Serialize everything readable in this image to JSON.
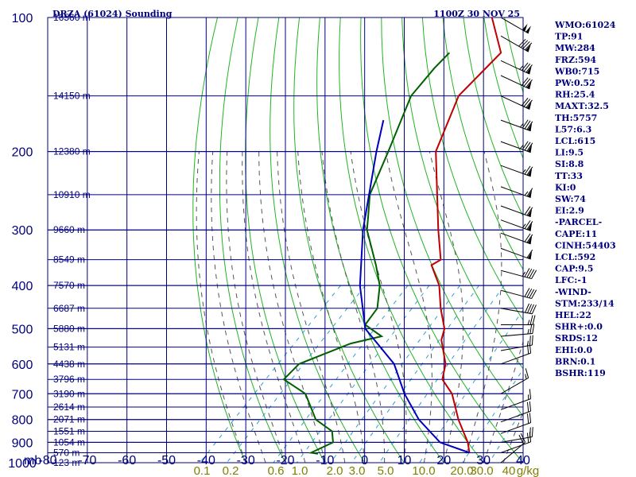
{
  "header": {
    "station": "DRZA (61024) Sounding",
    "time": "1100Z 30 NOV 25"
  },
  "chart_data": {
    "type": "skew-t",
    "pressure_axis": {
      "unit_label": "mb",
      "ticks": [
        100,
        200,
        300,
        400,
        500,
        600,
        700,
        800,
        900,
        1000
      ],
      "range": [
        100,
        1000
      ],
      "scale": "log"
    },
    "temperature_axis": {
      "ticks": [
        "-80",
        "-70",
        "-60",
        "-50",
        "-40",
        "-30",
        "-20",
        "-10",
        "0",
        "10",
        "20",
        "30",
        "40"
      ],
      "tick_values": [
        -80,
        -70,
        -60,
        -50,
        -40,
        -30,
        -20,
        -10,
        0,
        10,
        20,
        30,
        40
      ],
      "range": [
        -80,
        40
      ]
    },
    "mixing_ratio_labels": [
      "0.1",
      "0.2",
      "0.6",
      "1.0",
      "2.0",
      "3.0",
      "5.0",
      "10.0",
      "20.0",
      "30.0",
      "40",
      "g/kg"
    ],
    "height_labels": [
      {
        "text": "16560 m",
        "p": 100
      },
      {
        "text": "14150 m",
        "p": 150
      },
      {
        "text": "12380 m",
        "p": 200
      },
      {
        "text": "10910 m",
        "p": 250
      },
      {
        "text": "9660 m",
        "p": 300
      },
      {
        "text": "8549 m",
        "p": 350
      },
      {
        "text": "7570 m",
        "p": 400
      },
      {
        "text": "6687 m",
        "p": 450
      },
      {
        "text": "5880 m",
        "p": 500
      },
      {
        "text": "5131 m",
        "p": 550
      },
      {
        "text": "4438 m",
        "p": 600
      },
      {
        "text": "3796 m",
        "p": 650
      },
      {
        "text": "3190 m",
        "p": 700
      },
      {
        "text": "2614 m",
        "p": 750
      },
      {
        "text": "2071 m",
        "p": 800
      },
      {
        "text": "1551 m",
        "p": 850
      },
      {
        "text": "1054 m",
        "p": 900
      },
      {
        "text": "570 m",
        "p": 950
      },
      {
        "text": "123 m",
        "p": 1000
      }
    ],
    "series": [
      {
        "role": "temperature",
        "color": "#c00000",
        "points": [
          [
            100,
            -78
          ],
          [
            120,
            -67
          ],
          [
            128,
            -67
          ],
          [
            150,
            -67
          ],
          [
            200,
            -59
          ],
          [
            250,
            -48
          ],
          [
            300,
            -39
          ],
          [
            350,
            -31
          ],
          [
            360,
            -32
          ],
          [
            400,
            -25
          ],
          [
            450,
            -19
          ],
          [
            500,
            -13
          ],
          [
            530,
            -11
          ],
          [
            600,
            -4
          ],
          [
            650,
            -1
          ],
          [
            700,
            5
          ],
          [
            800,
            13
          ],
          [
            900,
            21
          ],
          [
            950,
            24
          ]
        ]
      },
      {
        "role": "dewpoint",
        "color": "#006000",
        "points": [
          [
            120,
            -80
          ],
          [
            130,
            -80
          ],
          [
            150,
            -79
          ],
          [
            200,
            -71
          ],
          [
            250,
            -65
          ],
          [
            280,
            -60
          ],
          [
            300,
            -57
          ],
          [
            360,
            -46
          ],
          [
            400,
            -40
          ],
          [
            450,
            -35
          ],
          [
            490,
            -34
          ],
          [
            520,
            -27
          ],
          [
            540,
            -33
          ],
          [
            600,
            -41
          ],
          [
            650,
            -41
          ],
          [
            700,
            -32
          ],
          [
            800,
            -23
          ],
          [
            850,
            -16
          ],
          [
            900,
            -13
          ],
          [
            950,
            -16
          ],
          [
            955,
            -14
          ]
        ]
      },
      {
        "role": "parcel",
        "color": "#0000bb",
        "points": [
          [
            170,
            -80
          ],
          [
            200,
            -74
          ],
          [
            300,
            -58
          ],
          [
            400,
            -45
          ],
          [
            500,
            -33
          ],
          [
            600,
            -17
          ],
          [
            700,
            -7
          ],
          [
            800,
            3
          ],
          [
            900,
            14
          ],
          [
            950,
            24
          ]
        ]
      }
    ],
    "wind_barbs": [
      {
        "p": 100,
        "dir": 300,
        "spd": 100
      },
      {
        "p": 110,
        "dir": 300,
        "spd": 90
      },
      {
        "p": 125,
        "dir": 295,
        "spd": 85
      },
      {
        "p": 135,
        "dir": 295,
        "spd": 80
      },
      {
        "p": 150,
        "dir": 295,
        "spd": 80
      },
      {
        "p": 170,
        "dir": 290,
        "spd": 85
      },
      {
        "p": 190,
        "dir": 290,
        "spd": 85
      },
      {
        "p": 215,
        "dir": 290,
        "spd": 75
      },
      {
        "p": 240,
        "dir": 290,
        "spd": 65
      },
      {
        "p": 265,
        "dir": 290,
        "spd": 70
      },
      {
        "p": 285,
        "dir": 290,
        "spd": 75
      },
      {
        "p": 305,
        "dir": 290,
        "spd": 70
      },
      {
        "p": 330,
        "dir": 290,
        "spd": 60
      },
      {
        "p": 370,
        "dir": 285,
        "spd": 45
      },
      {
        "p": 410,
        "dir": 285,
        "spd": 40
      },
      {
        "p": 450,
        "dir": 280,
        "spd": 40
      },
      {
        "p": 490,
        "dir": 270,
        "spd": 25
      },
      {
        "p": 520,
        "dir": 265,
        "spd": 25
      },
      {
        "p": 560,
        "dir": 260,
        "spd": 25
      },
      {
        "p": 600,
        "dir": 250,
        "spd": 20
      },
      {
        "p": 700,
        "dir": 240,
        "spd": 15
      },
      {
        "p": 760,
        "dir": 250,
        "spd": 15
      },
      {
        "p": 810,
        "dir": 250,
        "spd": 20
      },
      {
        "p": 860,
        "dir": 250,
        "spd": 20
      },
      {
        "p": 900,
        "dir": 260,
        "spd": 20
      },
      {
        "p": 950,
        "dir": 250,
        "spd": 20
      },
      {
        "p": 1000,
        "dir": 230,
        "spd": 20
      }
    ]
  },
  "indices": [
    "WMO:61024",
    "TP:91",
    "MW:284",
    "FRZ:594",
    "WB0:715",
    "PW:0.52",
    "RH:25.4",
    "MAXT:32.5",
    "TH:5757",
    "L57:6.3",
    "LCL:615",
    "LI:9.5",
    "SI:8.8",
    "TT:33",
    "KI:0",
    "SW:74",
    "EI:2.9",
    "-PARCEL-",
    "CAPE:11",
    "CINH:54403",
    "LCL:592",
    "CAP:9.5",
    "LFC:-1",
    "-WIND-",
    "STM:233/14",
    "HEL:22",
    "SHR+:0.0",
    "SRDS:12",
    "EHI:0.0",
    "BRN:0.1",
    "BSHR:119"
  ]
}
